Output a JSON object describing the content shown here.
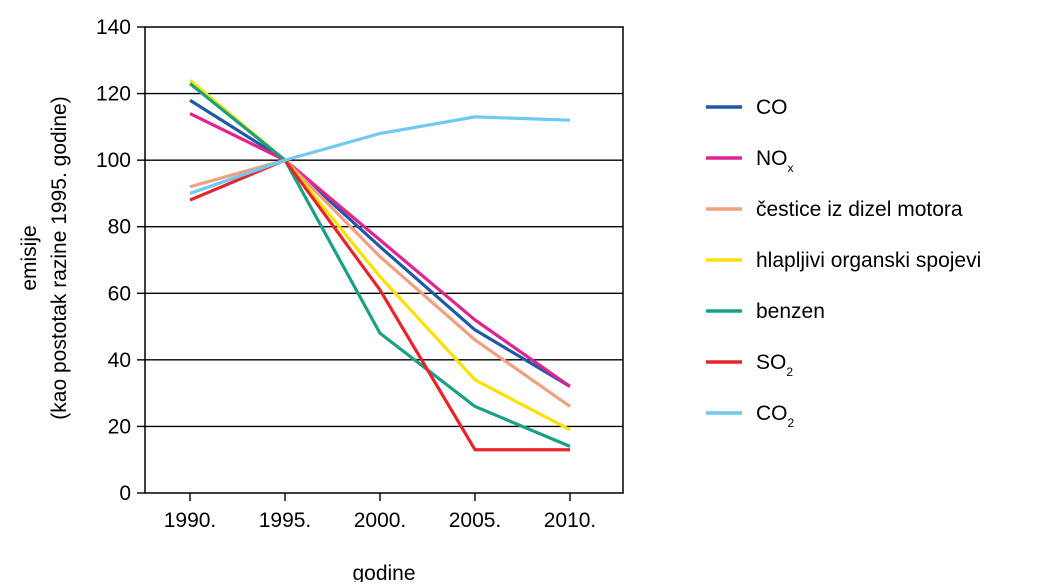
{
  "chart_data": {
    "type": "line",
    "title": "",
    "xlabel": "godine",
    "ylabel": "emisije",
    "ylabel_line2": "(kao postotak razine 1995. godine)",
    "categories": [
      "1990.",
      "1995.",
      "2000.",
      "2005.",
      "2010."
    ],
    "ylim": [
      0,
      140
    ],
    "yticks": [
      0,
      20,
      40,
      60,
      80,
      100,
      120,
      140
    ],
    "grid": true,
    "legend_position": "right",
    "series": [
      {
        "name": "CO",
        "sub": "",
        "color": "#1f5aa6",
        "values": [
          118,
          100,
          74,
          49,
          32
        ]
      },
      {
        "name": "NO",
        "sub": "x",
        "color": "#e0248f",
        "values": [
          114,
          100,
          76,
          52,
          32
        ]
      },
      {
        "name": "čestice iz dizel motora",
        "sub": "",
        "color": "#f0a080",
        "values": [
          92,
          100,
          71,
          46,
          26
        ]
      },
      {
        "name": "hlapljivi organski spojevi",
        "sub": "",
        "color": "#ffe000",
        "values": [
          124,
          100,
          65,
          34,
          19
        ]
      },
      {
        "name": "benzen",
        "sub": "",
        "color": "#1aa085",
        "values": [
          123,
          100,
          48,
          26,
          14
        ]
      },
      {
        "name": "SO",
        "sub": "2",
        "color": "#e8242b",
        "values": [
          88,
          100,
          61,
          13,
          13
        ]
      },
      {
        "name": "CO",
        "sub": "2",
        "color": "#6fcaf0",
        "values": [
          90,
          100,
          108,
          113,
          112
        ]
      }
    ]
  }
}
